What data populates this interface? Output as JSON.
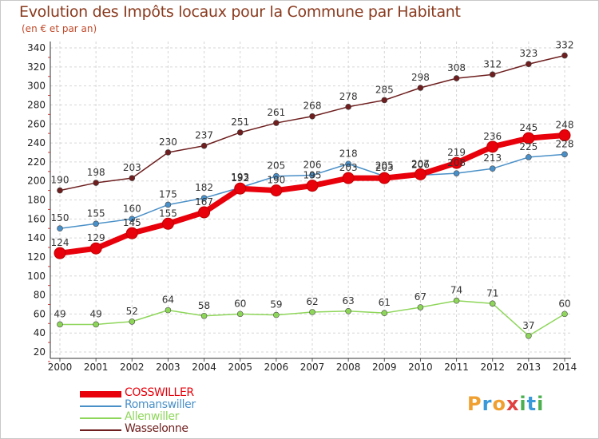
{
  "title": "Evolution des Impôts locaux pour la Commune par Habitant",
  "subtitle": "(en € et par an)",
  "logo": {
    "letters": [
      "P",
      "r",
      "o",
      "x",
      "i",
      "t",
      "i"
    ],
    "colors": [
      "#f0a030",
      "#3a9ad9",
      "#f0a030",
      "#e04040",
      "#4caf50",
      "#3a9ad9",
      "#4caf50"
    ]
  },
  "chart_data": {
    "type": "line",
    "x": [
      2000,
      2001,
      2002,
      2003,
      2004,
      2005,
      2006,
      2007,
      2008,
      2009,
      2010,
      2011,
      2012,
      2013,
      2014
    ],
    "ylim": [
      20,
      340
    ],
    "yticks": [
      20,
      40,
      60,
      80,
      100,
      120,
      140,
      160,
      180,
      200,
      220,
      240,
      260,
      280,
      300,
      320,
      340
    ],
    "grid": true,
    "legend_position": "bottom-left",
    "series": [
      {
        "name": "COSSWILLER",
        "color": "#e8000b",
        "values": [
          124,
          129,
          145,
          155,
          167,
          192,
          190,
          195,
          203,
          203,
          207,
          219,
          236,
          245,
          248
        ]
      },
      {
        "name": "Romanswiller",
        "color": "#4a90c8",
        "values": [
          150,
          155,
          160,
          175,
          182,
          193,
          205,
          206,
          218,
          205,
          206,
          208,
          213,
          225,
          228
        ]
      },
      {
        "name": "Allenwiller",
        "color": "#8ed65a",
        "values": [
          49,
          49,
          52,
          64,
          58,
          60,
          59,
          62,
          63,
          61,
          67,
          74,
          71,
          37,
          60
        ]
      },
      {
        "name": "Wasselonne",
        "color": "#6e1e1e",
        "values": [
          190,
          198,
          203,
          230,
          237,
          251,
          261,
          268,
          278,
          285,
          298,
          308,
          312,
          323,
          332
        ]
      }
    ]
  }
}
